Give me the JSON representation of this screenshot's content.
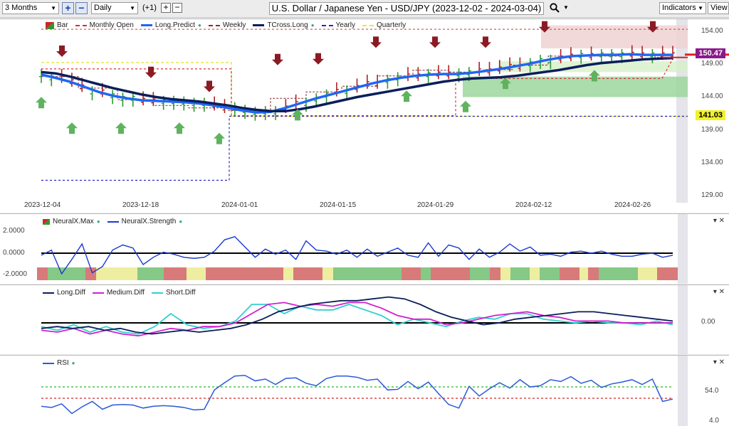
{
  "toolbar": {
    "range_value": "3 Months",
    "interval_value": "Daily",
    "offset_label": "(+1)",
    "title": "U.S. Dollar / Japanese Yen - USD/JPY (2023-12-02 - 2024-03-04)",
    "indicators_label": "Indicators",
    "view_label": "View"
  },
  "main_legend": [
    "Bar",
    "Monthly Open",
    "Long.Predict",
    "Weekly",
    "TCross.Long",
    "Yearly",
    "Quarterly"
  ],
  "main_y_ticks": [
    "154.00",
    "149.00",
    "144.00",
    "139.00",
    "134.00",
    "129.00"
  ],
  "price_labels": {
    "current": "150.47",
    "yearly": "141.03"
  },
  "x_ticks": [
    "2023-12-04",
    "2023-12-18",
    "2024-01-01",
    "2024-01-15",
    "2024-01-29",
    "2024-02-12",
    "2024-02-26"
  ],
  "neural_legend": [
    "NeuralX.Max",
    "NeuralX.Strength"
  ],
  "neural_y_ticks": [
    "2.0000",
    "0.0000",
    "-2.0000"
  ],
  "diff_legend": [
    "Long.Diff",
    "Medium.Diff",
    "Short.Diff"
  ],
  "diff_y_ticks": [
    "0.00"
  ],
  "rsi_legend": [
    "RSI"
  ],
  "rsi_y_ticks": [
    "54.0",
    "4.0"
  ],
  "colors": {
    "up": "#2a9a2a",
    "down": "#8c1a1a",
    "long_predict": "#1e66f5",
    "tcross_long": "#0a1e5a",
    "monthly_open": "#d43030",
    "weekly": "#8c2a3a",
    "yearly": "#2626c8",
    "quarterly": "#e6e64a",
    "neural_strength": "#1a3ad0",
    "medium_diff": "#d020d0",
    "short_diff": "#30d0d0",
    "rsi": "#2a5ad8"
  },
  "chart_data": [
    {
      "type": "line",
      "series": [
        {
          "name": "TCross.Long",
          "values": [
            147.9,
            147.7,
            147.2,
            146.6,
            146.0,
            145.4,
            144.9,
            144.4,
            144.0,
            143.7,
            143.5,
            143.3,
            143.0,
            142.7,
            142.3,
            142.0,
            141.8,
            141.8,
            142.1,
            142.5,
            143.0,
            143.5,
            144.0,
            144.4,
            144.8,
            145.2,
            145.6,
            146.0,
            146.4,
            146.7,
            146.9,
            147.0,
            147.1,
            147.3,
            147.6,
            147.9,
            148.2,
            148.6,
            149.0,
            149.3,
            149.5,
            149.7,
            149.9,
            150.0,
            150.1
          ]
        },
        {
          "name": "Long.Predict",
          "values": [
            147.5,
            147.0,
            146.4,
            145.6,
            144.8,
            144.2,
            143.8,
            143.5,
            143.4,
            143.3,
            143.2,
            143.0,
            142.7,
            142.3,
            141.9,
            141.6,
            141.7,
            142.3,
            143.0,
            143.7,
            144.3,
            144.9,
            145.5,
            146.1,
            146.6,
            147.0,
            147.3,
            147.5,
            147.6,
            147.6,
            147.8,
            148.1,
            148.4,
            148.8,
            149.2,
            149.7,
            150.1,
            150.4,
            150.5,
            150.6,
            150.6,
            150.7,
            150.6,
            150.6,
            150.6
          ]
        },
        {
          "name": "Yearly",
          "values": [
            131.0,
            141.0
          ]
        },
        {
          "name": "Quarterly",
          "values": [
            141.0
          ]
        }
      ],
      "y_ticks": [
        154,
        149,
        144,
        139,
        134,
        129
      ],
      "ylim": [
        127.5,
        155.5
      ]
    },
    {
      "type": "line",
      "series": [
        {
          "name": "NeuralX.Strength",
          "values": [
            -0.2,
            0.3,
            -2.0,
            -0.6,
            0.9,
            -1.9,
            -1.3,
            0.3,
            0.8,
            0.5,
            -1.1,
            -0.4,
            0.1,
            -0.1,
            -0.4,
            -0.5,
            -0.4,
            0.2,
            1.3,
            1.6,
            0.6,
            -0.4,
            0.4,
            -0.1,
            0.3,
            -0.6,
            1.2,
            0.3,
            0.2,
            -0.1,
            0.3,
            -0.4,
            0.4,
            -0.3,
            0.1,
            0.5,
            -0.2,
            -0.4,
            1.0,
            -0.3,
            0.8,
            0.5,
            -0.6,
            0.4,
            -0.4,
            0.1,
            0.9,
            0.2,
            0.6,
            -0.2,
            -0.1,
            -0.3,
            0.1,
            0.2,
            0.0,
            0.2,
            -0.1,
            -0.3,
            -0.3,
            -0.1,
            0.0,
            -0.4,
            -0.2
          ]
        }
      ],
      "y_ticks": [
        2,
        0,
        -2
      ]
    },
    {
      "type": "line",
      "series": [
        {
          "name": "Long.Diff",
          "values": [
            -0.3,
            -0.2,
            -0.3,
            -0.2,
            -0.4,
            -0.3,
            -0.5,
            -0.6,
            -0.5,
            -0.4,
            -0.5,
            -0.4,
            -0.3,
            -0.1,
            0.2,
            0.6,
            0.8,
            1.0,
            1.1,
            1.2,
            1.2,
            1.3,
            1.4,
            1.3,
            1.0,
            0.6,
            0.3,
            0.1,
            -0.1,
            0.0,
            0.2,
            0.3,
            0.4,
            0.5,
            0.6,
            0.6,
            0.5,
            0.4,
            0.3,
            0.2,
            0.1
          ]
        },
        {
          "name": "Medium.Diff",
          "values": [
            -0.4,
            -0.5,
            -0.3,
            -0.6,
            -0.4,
            -0.6,
            -0.7,
            -0.5,
            -0.3,
            -0.4,
            -0.2,
            -0.2,
            0.0,
            0.5,
            1.0,
            1.1,
            0.9,
            1.0,
            0.9,
            1.1,
            1.1,
            0.8,
            0.4,
            0.2,
            0.2,
            -0.1,
            0.0,
            0.2,
            0.4,
            0.5,
            0.6,
            0.4,
            0.3,
            0.1,
            0.1,
            0.1,
            0.0,
            0.0,
            0.0,
            0.0
          ]
        },
        {
          "name": "Short.Diff",
          "values": [
            -0.2,
            -0.4,
            -0.1,
            -0.5,
            -0.2,
            -0.5,
            -0.6,
            -0.2,
            0.5,
            -0.1,
            -0.3,
            -0.2,
            0.1,
            1.0,
            1.0,
            0.5,
            0.9,
            0.7,
            0.7,
            1.0,
            0.7,
            0.4,
            -0.1,
            0.2,
            0.0,
            -0.2,
            0.1,
            0.3,
            0.2,
            0.5,
            0.5,
            0.2,
            0.1,
            0.0,
            0.1,
            0.0,
            0.0,
            -0.1,
            0.1,
            -0.1
          ]
        }
      ],
      "y_ticks": [
        0
      ]
    },
    {
      "type": "line",
      "series": [
        {
          "name": "RSI",
          "values": [
            30,
            28,
            34,
            18,
            29,
            38,
            25,
            32,
            33,
            32,
            27,
            30,
            31,
            30,
            28,
            24,
            25,
            57,
            69,
            80,
            81,
            72,
            75,
            66,
            76,
            77,
            68,
            64,
            76,
            80,
            80,
            78,
            73,
            75,
            57,
            58,
            71,
            59,
            70,
            51,
            33,
            27,
            63,
            47,
            59,
            69,
            60,
            74,
            62,
            64,
            74,
            71,
            79,
            68,
            73,
            61,
            67,
            70,
            74,
            66,
            75,
            38,
            42
          ]
        }
      ],
      "y_ticks": [
        54,
        4
      ]
    }
  ]
}
